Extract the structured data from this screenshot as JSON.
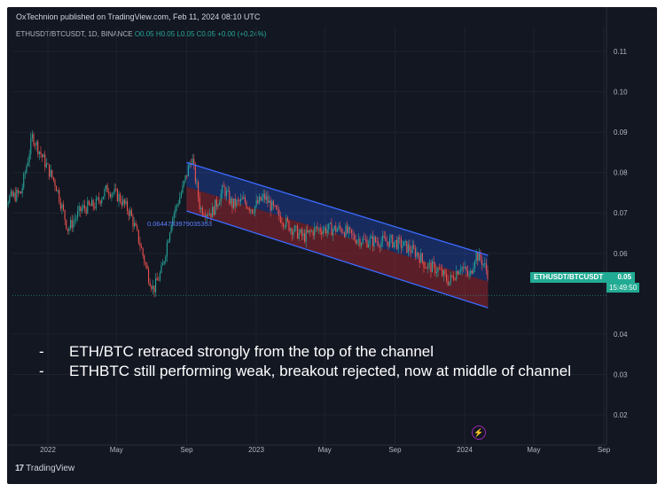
{
  "header": {
    "publisher": "OxTechnion published on TradingView.com, Feb 11, 2024 08:10 UTC",
    "symbol": "ETHUSDT/BTCUSDT, 1D, BINANCE",
    "ohlc": "O0.05 H0.05 L0.05 C0.05 +0.00 (+0.24%)"
  },
  "price_tag": {
    "symbol": "ETHUSDT/BTCUSDT",
    "value": "0.05",
    "countdown": "15:49:50"
  },
  "notes": [
    {
      "dash": "-",
      "text": "ETH/BTC retraced strongly from the top of the channel"
    },
    {
      "dash": "-",
      "text": "ETHBTC still performing weak, breakout rejected, now at middle of channel"
    }
  ],
  "branding": {
    "logo": "TradingView"
  },
  "icons": {
    "lightning": "lightning-icon",
    "logo": "tradingview-logo-icon"
  },
  "colors": {
    "background": "#131722",
    "up": "#26a69a",
    "down": "#ef5350",
    "channel_upper": "#2962ff",
    "channel_lower": "#b22833",
    "channel_line": "#3b6bff",
    "price_tag": "#22ab94"
  },
  "chart_data": {
    "type": "candlestick",
    "y_axis": {
      "ticks": [
        0.11,
        0.1,
        0.09,
        0.08,
        0.07,
        0.06,
        0.04,
        0.03,
        0.02
      ],
      "tick_labels": [
        "0.11",
        "0.10",
        "0.09",
        "0.08",
        "0.07",
        "0.06",
        "0.04",
        "0.03",
        "0.02"
      ],
      "range": [
        0.0135,
        0.1165
      ]
    },
    "x_axis": {
      "tick_labels": [
        "2022",
        "May",
        "Sep",
        "2023",
        "May",
        "Sep",
        "2024",
        "May",
        "Sep"
      ]
    },
    "channel": {
      "upper": {
        "start": [
          "2022-09-01",
          0.0825
        ],
        "end": [
          "2024-02-11",
          0.0595
        ]
      },
      "middle": {
        "start": [
          "2022-09-01",
          0.0765
        ],
        "end": [
          "2024-02-11",
          0.053
        ]
      },
      "lower": {
        "start": [
          "2022-09-01",
          0.0705
        ],
        "end": [
          "2024-02-11",
          0.0465
        ]
      },
      "label": "0.0644753979035353"
    },
    "price_path": [
      [
        "2021-10-01",
        0.072
      ],
      [
        "2021-11-15",
        0.075
      ],
      [
        "2021-12-05",
        0.089
      ],
      [
        "2021-12-25",
        0.083
      ],
      [
        "2022-01-15",
        0.077
      ],
      [
        "2022-02-05",
        0.066
      ],
      [
        "2022-03-01",
        0.071
      ],
      [
        "2022-03-25",
        0.072
      ],
      [
        "2022-04-15",
        0.076
      ],
      [
        "2022-05-05",
        0.074
      ],
      [
        "2022-05-25",
        0.07
      ],
      [
        "2022-06-10",
        0.063
      ],
      [
        "2022-06-25",
        0.055
      ],
      [
        "2022-07-05",
        0.051
      ],
      [
        "2022-07-20",
        0.056
      ],
      [
        "2022-08-05",
        0.068
      ],
      [
        "2022-08-25",
        0.076
      ],
      [
        "2022-09-10",
        0.084
      ],
      [
        "2022-09-25",
        0.071
      ],
      [
        "2022-10-15",
        0.07
      ],
      [
        "2022-11-05",
        0.076
      ],
      [
        "2022-11-20",
        0.072
      ],
      [
        "2022-12-10",
        0.073
      ],
      [
        "2022-12-25",
        0.071
      ],
      [
        "2023-01-15",
        0.074
      ],
      [
        "2023-02-05",
        0.07
      ],
      [
        "2023-03-05",
        0.066
      ],
      [
        "2023-03-25",
        0.064
      ],
      [
        "2023-04-15",
        0.066
      ],
      [
        "2023-05-05",
        0.066
      ],
      [
        "2023-06-01",
        0.066
      ],
      [
        "2023-06-20",
        0.064
      ],
      [
        "2023-07-10",
        0.063
      ],
      [
        "2023-08-01",
        0.063
      ],
      [
        "2023-08-25",
        0.063
      ],
      [
        "2023-09-15",
        0.062
      ],
      [
        "2023-10-10",
        0.06
      ],
      [
        "2023-10-25",
        0.057
      ],
      [
        "2023-11-15",
        0.056
      ],
      [
        "2023-12-05",
        0.053
      ],
      [
        "2023-12-25",
        0.057
      ],
      [
        "2024-01-10",
        0.054
      ],
      [
        "2024-01-20",
        0.06
      ],
      [
        "2024-02-01",
        0.058
      ],
      [
        "2024-02-11",
        0.055
      ]
    ],
    "last_price": 0.05,
    "grid": true
  }
}
